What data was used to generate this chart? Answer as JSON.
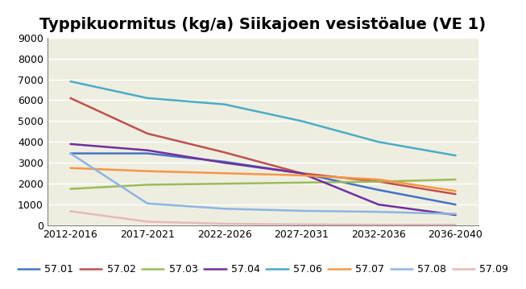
{
  "title": "Typpikuormitus (kg/a) Siikajoen vesistöalue (VE 1)",
  "x_labels": [
    "2012-2016",
    "2017-2021",
    "2022-2026",
    "2027-2031",
    "2032-2036",
    "2036-2040"
  ],
  "series": {
    "57.01": {
      "values": [
        3450,
        3450,
        3050,
        2500,
        1700,
        1000
      ],
      "color": "#4472C4"
    },
    "57.02": {
      "values": [
        6100,
        4400,
        3500,
        2500,
        2100,
        1500
      ],
      "color": "#C0504D"
    },
    "57.03": {
      "values": [
        1750,
        1950,
        2000,
        2050,
        2100,
        2200
      ],
      "color": "#9BBB59"
    },
    "57.04": {
      "values": [
        3900,
        3600,
        3000,
        2500,
        1000,
        500
      ],
      "color": "#7030A0"
    },
    "57.06": {
      "values": [
        6900,
        6100,
        5800,
        5000,
        4000,
        3350
      ],
      "color": "#4BACC6"
    },
    "57.07": {
      "values": [
        2750,
        2600,
        2500,
        2400,
        2200,
        1650
      ],
      "color": "#F79646"
    },
    "57.08": {
      "values": [
        3450,
        1050,
        800,
        700,
        650,
        550
      ],
      "color": "#8DB4E2"
    },
    "57.09": {
      "values": [
        680,
        180,
        80,
        50,
        30,
        30
      ],
      "color": "#E6B9B8"
    }
  },
  "ylim": [
    0,
    9000
  ],
  "yticks": [
    0,
    1000,
    2000,
    3000,
    4000,
    5000,
    6000,
    7000,
    8000,
    9000
  ],
  "fig_bg_color": "#FFFFFF",
  "plot_bg_color": "#EEEEE0",
  "grid_color": "#FFFFFF",
  "title_fontsize": 14,
  "legend_fontsize": 9,
  "tick_fontsize": 9,
  "border_color": "#808080"
}
